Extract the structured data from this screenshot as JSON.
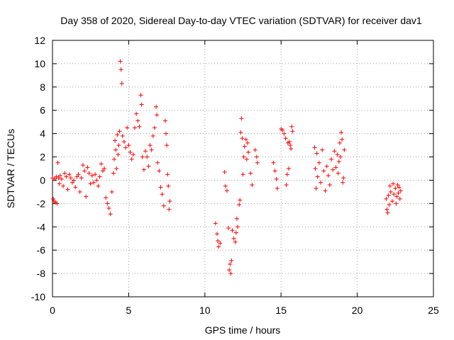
{
  "chart_data": {
    "type": "scatter",
    "title": "Day 358 of 2020, Sidereal Day-to-day VTEC variation (SDTVAR) for receiver dav1",
    "xlabel": "GPS time / hours",
    "ylabel": "SDTVAR / TECUs",
    "xlim": [
      0,
      25
    ],
    "ylim": [
      -10,
      12
    ],
    "xticks": [
      "0",
      "5",
      "10",
      "15",
      "20",
      "25"
    ],
    "yticks": [
      "-10",
      "-8",
      "-6",
      "-4",
      "-2",
      "0",
      "2",
      "4",
      "6",
      "8",
      "10",
      "12"
    ],
    "grid": true,
    "marker": "+",
    "color": "#ff0000",
    "series": [
      {
        "name": "SDTVAR",
        "points": [
          [
            0.0,
            0.2
          ],
          [
            0.05,
            -1.6
          ],
          [
            0.1,
            -1.8
          ],
          [
            0.15,
            0.1
          ],
          [
            0.2,
            -1.9
          ],
          [
            0.25,
            0.3
          ],
          [
            0.3,
            -2.0
          ],
          [
            0.35,
            1.5
          ],
          [
            0.4,
            0.2
          ],
          [
            0.45,
            -0.3
          ],
          [
            0.5,
            0.4
          ],
          [
            0.6,
            0.1
          ],
          [
            0.7,
            -0.5
          ],
          [
            0.8,
            0.6
          ],
          [
            0.9,
            0.3
          ],
          [
            1.0,
            -0.8
          ],
          [
            1.1,
            0.5
          ],
          [
            1.2,
            0.2
          ],
          [
            1.3,
            -0.2
          ],
          [
            1.4,
            0.0
          ],
          [
            1.5,
            -0.6
          ],
          [
            1.6,
            0.3
          ],
          [
            1.7,
            0.5
          ],
          [
            1.8,
            -1.0
          ],
          [
            1.9,
            0.2
          ],
          [
            2.0,
            1.3
          ],
          [
            2.1,
            0.8
          ],
          [
            2.2,
            -1.4
          ],
          [
            2.3,
            1.1
          ],
          [
            2.4,
            0.6
          ],
          [
            2.5,
            -0.3
          ],
          [
            2.6,
            0.4
          ],
          [
            2.7,
            -0.2
          ],
          [
            2.8,
            0.5
          ],
          [
            2.9,
            0.0
          ],
          [
            3.0,
            -0.5
          ],
          [
            3.1,
            0.3
          ],
          [
            3.2,
            1.4
          ],
          [
            3.3,
            0.8
          ],
          [
            3.4,
            1.0
          ],
          [
            3.5,
            -1.5
          ],
          [
            3.6,
            -2.0
          ],
          [
            3.7,
            -2.4
          ],
          [
            3.8,
            -2.9
          ],
          [
            3.9,
            -1.0
          ],
          [
            4.0,
            0.6
          ],
          [
            4.05,
            1.8
          ],
          [
            4.1,
            3.4
          ],
          [
            4.15,
            2.6
          ],
          [
            4.2,
            1.0
          ],
          [
            4.25,
            3.9
          ],
          [
            4.3,
            2.2
          ],
          [
            4.35,
            3.0
          ],
          [
            4.4,
            4.2
          ],
          [
            4.45,
            10.2
          ],
          [
            4.5,
            9.5
          ],
          [
            4.55,
            8.3
          ],
          [
            4.6,
            3.8
          ],
          [
            4.7,
            3.3
          ],
          [
            4.8,
            2.8
          ],
          [
            4.9,
            4.5
          ],
          [
            5.0,
            3.0
          ],
          [
            5.1,
            2.4
          ],
          [
            5.2,
            1.8
          ],
          [
            5.3,
            2.2
          ],
          [
            5.4,
            4.5
          ],
          [
            5.5,
            5.7
          ],
          [
            5.6,
            5.1
          ],
          [
            5.7,
            4.6
          ],
          [
            5.8,
            7.3
          ],
          [
            5.85,
            6.5
          ],
          [
            5.9,
            2.0
          ],
          [
            6.0,
            0.9
          ],
          [
            6.1,
            2.5
          ],
          [
            6.2,
            2.0
          ],
          [
            6.3,
            1.2
          ],
          [
            6.4,
            3.0
          ],
          [
            6.5,
            2.6
          ],
          [
            6.6,
            3.8
          ],
          [
            6.7,
            4.5
          ],
          [
            6.8,
            6.3
          ],
          [
            6.85,
            5.6
          ],
          [
            6.9,
            1.5
          ],
          [
            7.0,
            0.8
          ],
          [
            7.1,
            -0.6
          ],
          [
            7.2,
            -1.2
          ],
          [
            7.3,
            -2.2
          ],
          [
            7.4,
            5.1
          ],
          [
            7.45,
            4.0
          ],
          [
            7.5,
            3.0
          ],
          [
            7.55,
            0.5
          ],
          [
            7.6,
            -0.5
          ],
          [
            7.65,
            -2.5
          ],
          [
            7.7,
            -1.8
          ],
          [
            10.7,
            -3.7
          ],
          [
            10.8,
            -4.6
          ],
          [
            10.85,
            -5.2
          ],
          [
            10.9,
            -5.7
          ],
          [
            11.0,
            -5.4
          ],
          [
            11.3,
            0.7
          ],
          [
            11.35,
            -0.5
          ],
          [
            11.45,
            -0.9
          ],
          [
            11.55,
            -4.1
          ],
          [
            11.6,
            -7.7
          ],
          [
            11.65,
            -7.2
          ],
          [
            11.7,
            -8.0
          ],
          [
            11.75,
            -6.9
          ],
          [
            11.8,
            -4.3
          ],
          [
            11.9,
            -5.0
          ],
          [
            12.0,
            -5.3
          ],
          [
            12.05,
            -4.5
          ],
          [
            12.1,
            -3.3
          ],
          [
            12.15,
            -4.0
          ],
          [
            12.25,
            -2.1
          ],
          [
            12.3,
            -1.7
          ],
          [
            12.35,
            4.1
          ],
          [
            12.4,
            5.3
          ],
          [
            12.45,
            3.6
          ],
          [
            12.5,
            0.5
          ],
          [
            12.55,
            2.0
          ],
          [
            12.6,
            2.9
          ],
          [
            12.7,
            3.5
          ],
          [
            12.75,
            1.8
          ],
          [
            12.8,
            3.2
          ],
          [
            12.85,
            2.4
          ],
          [
            13.0,
            0.6
          ],
          [
            13.1,
            -0.4
          ],
          [
            13.3,
            2.6
          ],
          [
            13.4,
            2.0
          ],
          [
            13.45,
            1.5
          ],
          [
            14.5,
            1.5
          ],
          [
            14.6,
            0.8
          ],
          [
            14.7,
            0.1
          ],
          [
            14.75,
            -0.7
          ],
          [
            15.0,
            4.4
          ],
          [
            15.1,
            4.3
          ],
          [
            15.2,
            4.0
          ],
          [
            15.3,
            3.6
          ],
          [
            15.35,
            -0.4
          ],
          [
            15.4,
            0.5
          ],
          [
            15.45,
            3.2
          ],
          [
            15.5,
            1.0
          ],
          [
            15.55,
            3.3
          ],
          [
            15.6,
            3.0
          ],
          [
            15.65,
            2.7
          ],
          [
            15.7,
            4.6
          ],
          [
            15.75,
            4.2
          ],
          [
            17.2,
            2.8
          ],
          [
            17.25,
            1.0
          ],
          [
            17.3,
            -0.7
          ],
          [
            17.35,
            2.3
          ],
          [
            17.4,
            0.3
          ],
          [
            17.5,
            1.5
          ],
          [
            17.6,
            -0.2
          ],
          [
            17.7,
            2.6
          ],
          [
            17.8,
            0.8
          ],
          [
            17.9,
            -0.9
          ],
          [
            18.0,
            1.2
          ],
          [
            18.1,
            0.4
          ],
          [
            18.2,
            -0.4
          ],
          [
            18.3,
            1.8
          ],
          [
            18.4,
            0.9
          ],
          [
            18.5,
            2.5
          ],
          [
            18.6,
            1.1
          ],
          [
            18.7,
            2.2
          ],
          [
            18.75,
            0.6
          ],
          [
            18.8,
            1.6
          ],
          [
            18.85,
            3.2
          ],
          [
            18.9,
            2.0
          ],
          [
            18.95,
            4.1
          ],
          [
            19.0,
            3.5
          ],
          [
            19.05,
            -0.2
          ],
          [
            19.1,
            0.2
          ],
          [
            19.15,
            2.6
          ],
          [
            21.9,
            -1.6
          ],
          [
            21.95,
            -2.5
          ],
          [
            22.0,
            -2.8
          ],
          [
            22.05,
            -1.3
          ],
          [
            22.1,
            -2.1
          ],
          [
            22.15,
            -0.5
          ],
          [
            22.2,
            -1.0
          ],
          [
            22.3,
            -1.8
          ],
          [
            22.35,
            -0.3
          ],
          [
            22.4,
            -1.2
          ],
          [
            22.5,
            -0.7
          ],
          [
            22.55,
            -2.0
          ],
          [
            22.6,
            -1.4
          ],
          [
            22.65,
            -0.4
          ],
          [
            22.7,
            -1.1
          ],
          [
            22.75,
            -0.6
          ],
          [
            22.8,
            -1.6
          ],
          [
            22.85,
            -0.9
          ]
        ]
      }
    ]
  }
}
